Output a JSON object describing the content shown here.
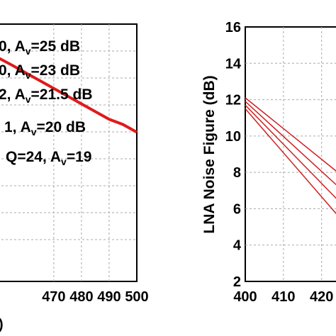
{
  "chart_data": [
    {
      "type": "line",
      "title": "",
      "xlabel": "",
      "ylabel": "",
      "xlim": [
        448,
        500
      ],
      "x_ticks": [
        "470",
        "480",
        "490",
        "500"
      ],
      "partial_xlabel": ")",
      "legend": [
        {
          "pre": "0, A",
          "sub": "v",
          "post": "=25 dB"
        },
        {
          "pre": "0, A",
          "sub": "v",
          "post": "=23 dB"
        },
        {
          "pre": "2, A",
          "sub": "v",
          "post": "=21.5 dB"
        },
        {
          "pre": "1, A",
          "sub": "v",
          "post": "=20 dB"
        },
        {
          "pre": "Q=24, A",
          "sub": "v",
          "post": "=19"
        }
      ],
      "series": [
        {
          "x": [
            448,
            455,
            460,
            465,
            470,
            475,
            480,
            485,
            490,
            495,
            500
          ],
          "y": [
            0.88,
            0.84,
            0.81,
            0.78,
            0.75,
            0.72,
            0.69,
            0.66,
            0.63,
            0.61,
            0.58
          ]
        }
      ],
      "ylim": [
        0,
        1
      ],
      "color": "#e01a1a"
    },
    {
      "type": "line",
      "title": "",
      "xlabel": "",
      "ylabel": "LNA Noise Figure (dB)",
      "xlim": [
        400,
        426
      ],
      "ylim": [
        2,
        16
      ],
      "x_ticks": [
        "400",
        "410",
        "420"
      ],
      "y_ticks": [
        "2",
        "4",
        "6",
        "8",
        "10",
        "12",
        "14",
        "16"
      ],
      "series": [
        {
          "x": [
            400,
            426
          ],
          "y": [
            12.1,
            7.7
          ]
        },
        {
          "x": [
            400,
            426
          ],
          "y": [
            11.9,
            6.9
          ]
        },
        {
          "x": [
            400,
            426
          ],
          "y": [
            11.7,
            6.1
          ]
        },
        {
          "x": [
            400,
            426
          ],
          "y": [
            11.5,
            5.2
          ]
        }
      ],
      "color": "#cc2222"
    }
  ]
}
